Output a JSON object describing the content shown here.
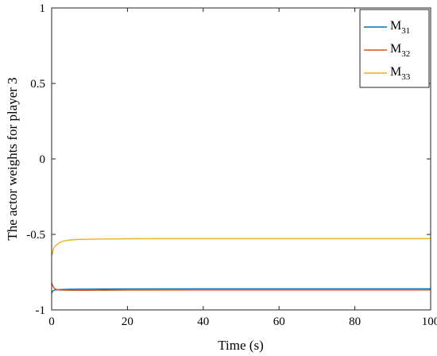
{
  "chart_data": {
    "type": "line",
    "xlabel": "Time (s)",
    "ylabel": "The actor weights for player 3",
    "xlim": [
      0,
      100
    ],
    "ylim": [
      -1,
      1
    ],
    "xticks": [
      0,
      20,
      40,
      60,
      80,
      100
    ],
    "xtick_labels": [
      "0",
      "20",
      "40",
      "60",
      "80",
      "100"
    ],
    "yticks": [
      1,
      0.5,
      0,
      -0.5,
      -1
    ],
    "ytick_labels": [
      "1",
      "0.5",
      "0",
      "-0.5",
      "-1"
    ],
    "grid": false,
    "legend_position": "top-right",
    "series": [
      {
        "name": "M31",
        "legend_base": "M",
        "legend_sub": "31",
        "color": "#0072BD",
        "x": [
          0,
          0.3,
          0.6,
          1,
          1.5,
          2,
          3,
          5,
          10,
          20,
          40,
          60,
          80,
          100
        ],
        "y": [
          -0.89,
          -0.875,
          -0.87,
          -0.868,
          -0.866,
          -0.865,
          -0.864,
          -0.863,
          -0.862,
          -0.861,
          -0.86,
          -0.86,
          -0.86,
          -0.86
        ]
      },
      {
        "name": "M32",
        "legend_base": "M",
        "legend_sub": "32",
        "color": "#D95319",
        "x": [
          0,
          0.3,
          0.6,
          1,
          1.5,
          2,
          3,
          5,
          10,
          20,
          40,
          60,
          80,
          100
        ],
        "y": [
          -0.82,
          -0.84,
          -0.855,
          -0.862,
          -0.866,
          -0.868,
          -0.869,
          -0.87,
          -0.87,
          -0.869,
          -0.868,
          -0.868,
          -0.868,
          -0.868
        ]
      },
      {
        "name": "M33",
        "legend_base": "M",
        "legend_sub": "33",
        "color": "#EDB120",
        "x": [
          0,
          0.2,
          0.4,
          0.7,
          1,
          1.5,
          2,
          3,
          4,
          5,
          7,
          10,
          15,
          20,
          30,
          40,
          60,
          80,
          100
        ],
        "y": [
          -0.64,
          -0.63,
          -0.6,
          -0.585,
          -0.575,
          -0.565,
          -0.555,
          -0.545,
          -0.54,
          -0.537,
          -0.533,
          -0.532,
          -0.53,
          -0.529,
          -0.528,
          -0.528,
          -0.528,
          -0.528,
          -0.528
        ]
      }
    ]
  }
}
